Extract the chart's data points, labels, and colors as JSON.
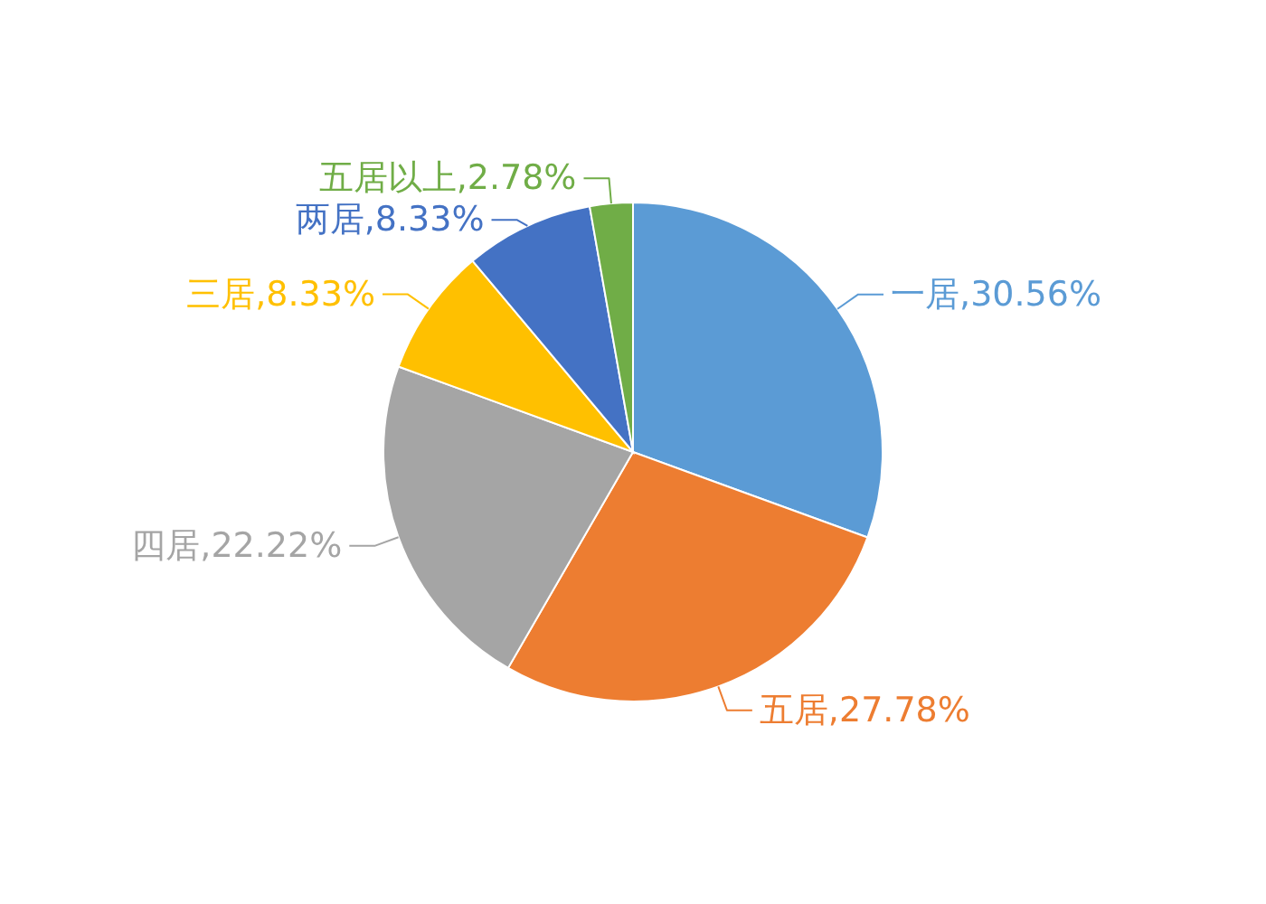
{
  "chart_data": {
    "type": "pie",
    "categories": [
      "一居",
      "五居",
      "四居",
      "三居",
      "两居",
      "五居以上"
    ],
    "values": [
      30.56,
      27.78,
      22.22,
      8.33,
      8.33,
      2.78
    ],
    "colors": [
      "#5b9bd5",
      "#ed7d31",
      "#a5a5a5",
      "#ffc000",
      "#4472c4",
      "#70ad47"
    ],
    "value_labels": [
      ",30.56%",
      ",27.78%",
      ",22.22%",
      ",8.33%",
      ",8.33%",
      ",2.78%"
    ]
  }
}
